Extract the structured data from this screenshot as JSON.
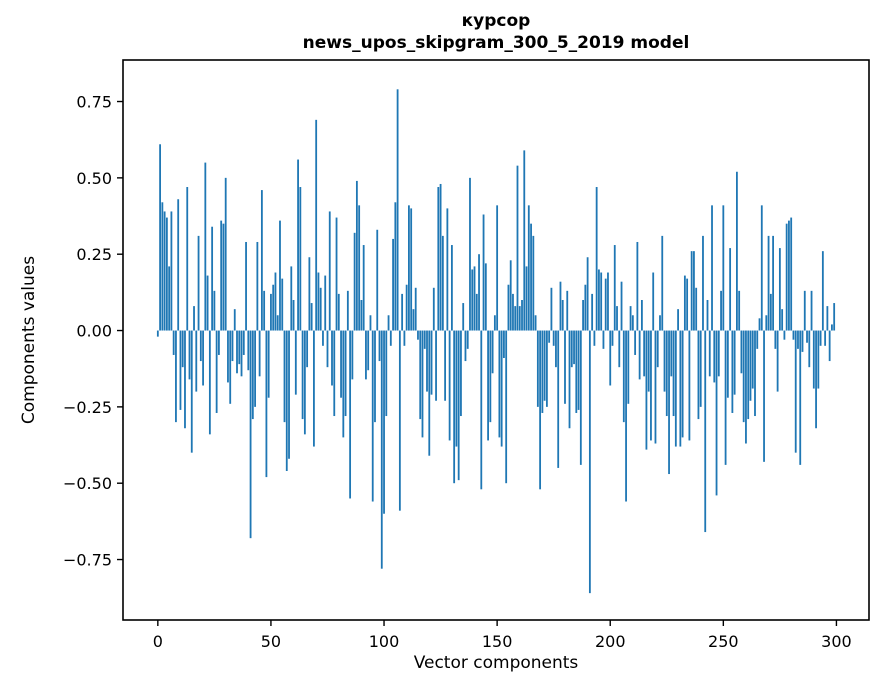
{
  "chart_data": {
    "type": "bar",
    "title": "курсор",
    "subtitle": "news_upos_skipgram_300_5_2019 model",
    "xlabel": "Vector components",
    "ylabel": "Components values",
    "x_ticks": [
      0,
      50,
      100,
      150,
      200,
      250,
      300
    ],
    "y_ticks": [
      0.75,
      0.5,
      0.25,
      0.0,
      -0.25,
      -0.5,
      -0.75
    ],
    "y_tick_labels": [
      "0.75",
      "0.50",
      "0.25",
      "0.00",
      "−0.25",
      "−0.50",
      "−0.75"
    ],
    "xlim": [
      -15.4,
      314.4
    ],
    "ylim": [
      -0.948,
      0.886
    ],
    "grid": false,
    "legend": false,
    "bar_color": "#1f77b4",
    "n_components": 300,
    "values": [
      -0.02,
      0.61,
      0.42,
      0.39,
      0.37,
      0.21,
      0.39,
      -0.08,
      -0.3,
      0.43,
      -0.26,
      -0.12,
      -0.32,
      0.47,
      -0.16,
      -0.4,
      0.08,
      -0.2,
      0.31,
      -0.1,
      -0.18,
      0.55,
      0.18,
      -0.34,
      0.34,
      0.13,
      -0.27,
      -0.08,
      0.36,
      0.35,
      0.5,
      -0.17,
      -0.24,
      -0.1,
      0.07,
      -0.14,
      -0.11,
      -0.15,
      -0.08,
      0.29,
      -0.13,
      -0.68,
      -0.29,
      -0.25,
      0.29,
      -0.15,
      0.46,
      0.13,
      -0.48,
      -0.22,
      0.12,
      0.15,
      0.19,
      0.05,
      0.36,
      0.17,
      -0.3,
      -0.46,
      -0.42,
      0.21,
      0.1,
      -0.21,
      0.56,
      0.47,
      -0.29,
      -0.34,
      -0.12,
      0.24,
      0.09,
      -0.38,
      0.69,
      0.19,
      0.14,
      -0.05,
      0.18,
      -0.12,
      0.39,
      -0.18,
      -0.28,
      0.37,
      0.12,
      -0.22,
      -0.35,
      -0.28,
      0.13,
      -0.55,
      -0.16,
      0.32,
      0.49,
      0.41,
      0.1,
      0.28,
      -0.16,
      -0.13,
      0.05,
      -0.56,
      -0.3,
      0.33,
      -0.1,
      -0.78,
      -0.6,
      -0.28,
      0.05,
      -0.05,
      0.3,
      0.42,
      0.79,
      -0.59,
      0.12,
      -0.05,
      0.15,
      0.41,
      0.4,
      0.07,
      0.14,
      -0.03,
      -0.29,
      -0.35,
      -0.06,
      -0.2,
      -0.41,
      -0.21,
      0.14,
      -0.23,
      0.47,
      0.48,
      0.31,
      -0.23,
      0.4,
      -0.36,
      0.28,
      -0.5,
      -0.38,
      -0.49,
      -0.28,
      0.09,
      -0.1,
      -0.06,
      0.5,
      0.2,
      0.21,
      0.12,
      0.25,
      -0.52,
      0.38,
      0.22,
      -0.36,
      -0.3,
      -0.14,
      0.05,
      0.41,
      -0.35,
      -0.38,
      -0.09,
      -0.5,
      0.15,
      0.23,
      0.12,
      0.08,
      0.54,
      0.08,
      0.1,
      0.59,
      0.21,
      0.41,
      0.35,
      0.31,
      0.05,
      -0.25,
      -0.52,
      -0.27,
      -0.23,
      -0.25,
      -0.04,
      0.14,
      -0.05,
      -0.12,
      -0.45,
      0.16,
      0.1,
      -0.24,
      0.13,
      -0.32,
      -0.12,
      -0.11,
      -0.27,
      -0.26,
      -0.44,
      0.1,
      0.15,
      0.24,
      -0.86,
      0.12,
      -0.05,
      0.47,
      0.2,
      0.19,
      -0.06,
      0.17,
      0.19,
      -0.18,
      -0.05,
      0.28,
      0.08,
      -0.12,
      0.16,
      -0.3,
      -0.56,
      -0.24,
      0.08,
      0.05,
      -0.08,
      0.29,
      -0.16,
      0.1,
      -0.15,
      -0.39,
      -0.2,
      -0.36,
      0.19,
      -0.37,
      -0.12,
      0.05,
      0.31,
      -0.2,
      -0.28,
      -0.47,
      -0.15,
      -0.28,
      -0.38,
      0.07,
      -0.38,
      -0.35,
      0.18,
      0.17,
      -0.36,
      0.26,
      0.26,
      0.14,
      -0.29,
      -0.25,
      0.31,
      -0.66,
      0.1,
      -0.15,
      0.41,
      -0.17,
      -0.54,
      -0.15,
      0.13,
      0.41,
      -0.44,
      -0.22,
      0.27,
      -0.27,
      -0.21,
      0.52,
      0.13,
      -0.14,
      -0.3,
      -0.37,
      -0.29,
      -0.23,
      -0.19,
      -0.28,
      -0.06,
      0.04,
      0.41,
      -0.43,
      0.05,
      0.31,
      0.12,
      0.31,
      -0.06,
      -0.2,
      0.27,
      0.07,
      -0.03,
      0.35,
      0.36,
      0.37,
      -0.03,
      -0.4,
      -0.06,
      -0.44,
      -0.07,
      0.13,
      -0.04,
      -0.12,
      0.13,
      -0.19,
      -0.32,
      -0.19,
      -0.05,
      0.26,
      -0.05,
      0.08,
      -0.1,
      0.02,
      0.09
    ]
  }
}
